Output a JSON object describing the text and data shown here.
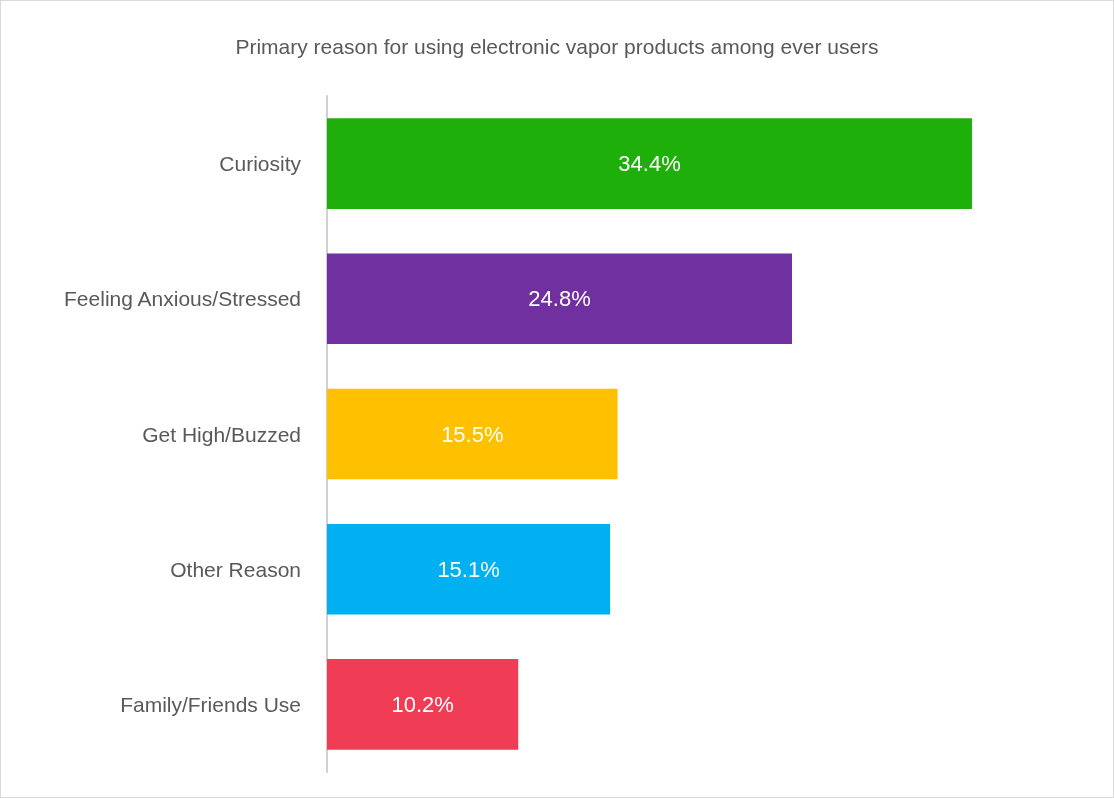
{
  "chart_data": {
    "type": "bar",
    "orientation": "horizontal",
    "title": "Primary reason for using electronic vapor products among ever users",
    "categories": [
      "Curiosity",
      "Feeling Anxious/Stressed",
      "Get High/Buzzed",
      "Other Reason",
      "Family/Friends Use"
    ],
    "values": [
      34.4,
      24.8,
      15.5,
      15.1,
      10.2
    ],
    "colors": [
      "#1faf0a",
      "#7030a0",
      "#ffc000",
      "#00b0f0",
      "#f03c55"
    ],
    "value_labels": [
      "34.4%",
      "24.8%",
      "15.5%",
      "15.1%",
      "10.2%"
    ]
  }
}
